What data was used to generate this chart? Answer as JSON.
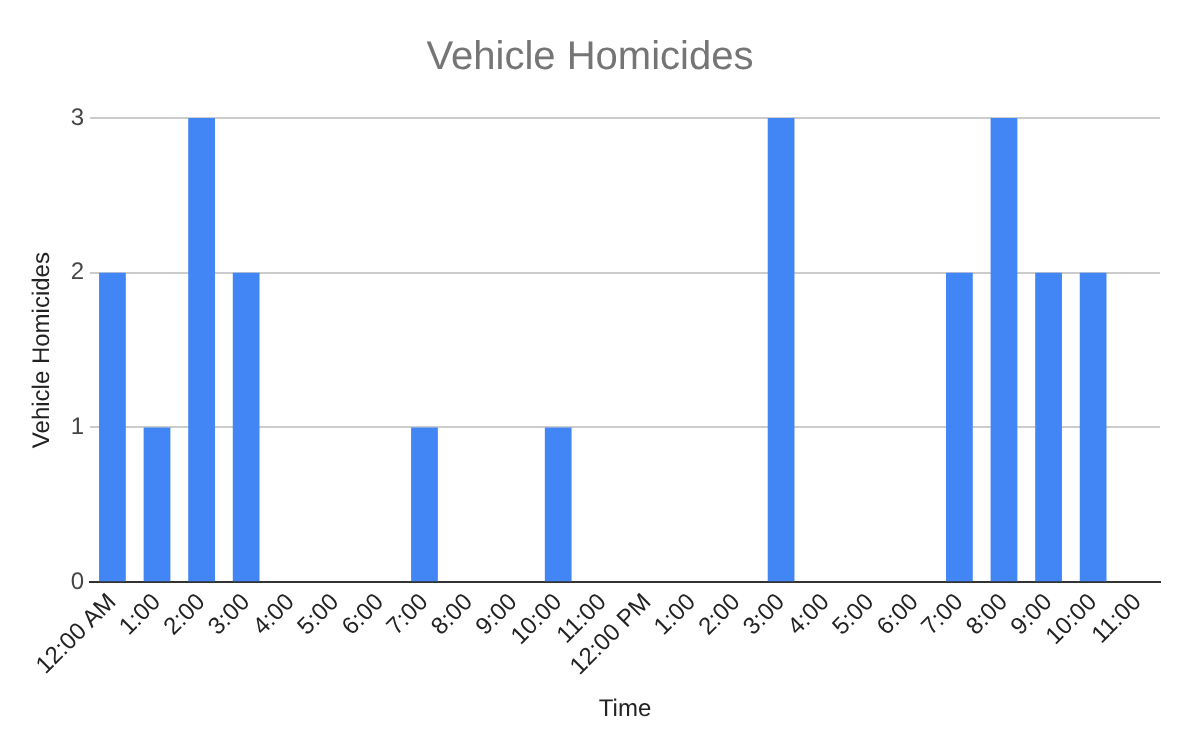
{
  "chart_data": {
    "type": "bar",
    "title": "Vehicle Homicides",
    "xlabel": "Time",
    "ylabel": "Vehicle Homicides",
    "categories": [
      "12:00 AM",
      "1:00",
      "2:00",
      "3:00",
      "4:00",
      "5:00",
      "6:00",
      "7:00",
      "8:00",
      "9:00",
      "10:00",
      "11:00",
      "12:00 PM",
      "1:00",
      "2:00",
      "3:00",
      "4:00",
      "5:00",
      "6:00",
      "7:00",
      "8:00",
      "9:00",
      "10:00",
      "11:00"
    ],
    "values": [
      2,
      1,
      3,
      2,
      0,
      0,
      0,
      1,
      0,
      0,
      1,
      0,
      0,
      0,
      0,
      3,
      0,
      0,
      0,
      2,
      3,
      2,
      2,
      0
    ],
    "color": "#4285f4",
    "ylim": [
      0,
      3
    ],
    "yticks": [
      0,
      1,
      2,
      3
    ],
    "grid": "y"
  }
}
